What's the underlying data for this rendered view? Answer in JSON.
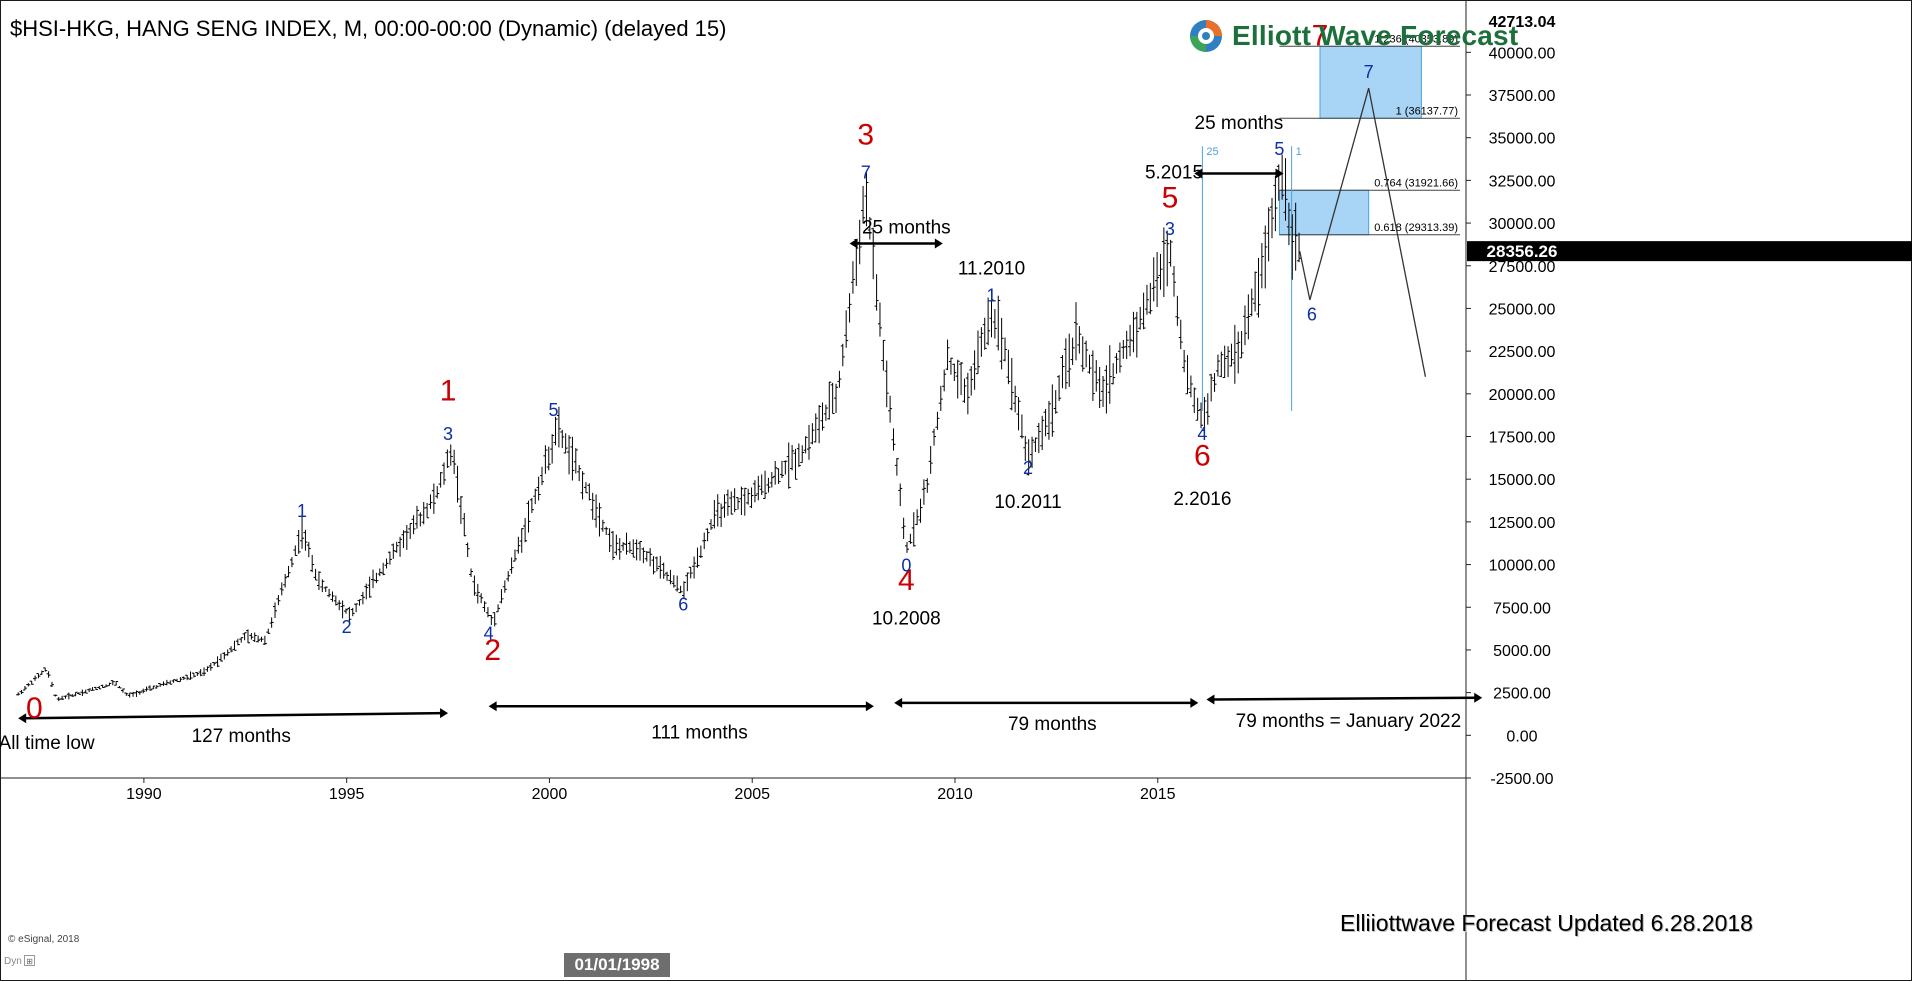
{
  "window": {
    "title": "$HSI-HKG, HANG SENG INDEX, M, 00:00-00:00 (Dynamic) (delayed 15)",
    "brand": "Elliott Wave Forecast",
    "updated": "Elliiottwave Forecast Updated 6.28.2018",
    "copyright": "© eSignal, 2018",
    "dyn_label": "Dyn",
    "cursor_date": "01/01/1998",
    "colors": {
      "wave_major": "#cc0000",
      "wave_minor": "#0b2fa8",
      "target_box": "#a8d4f5",
      "target_border": "#4aa3df",
      "price_tag": "#000000"
    }
  },
  "chart_data": {
    "type": "bar",
    "title": "$HSI-HKG, HANG SENG INDEX, M",
    "xlabel": "",
    "ylabel": "",
    "ylim": [
      -2500,
      42713.04
    ],
    "xlim": [
      1986.6,
      2022.6
    ],
    "x_ticks": [
      1990,
      1995,
      2000,
      2005,
      2010,
      2015
    ],
    "y_ticks": [
      40000,
      37500,
      35000,
      32500,
      30000,
      27500,
      25000,
      22500,
      20000,
      17500,
      15000,
      12500,
      10000,
      7500,
      5000,
      2500,
      0,
      -2500
    ],
    "y_tick_labels": [
      "40000.00",
      "37500.00",
      "35000.00",
      "32500.00",
      "30000.00",
      "27500.00",
      "25000.00",
      "22500.00",
      "20000.00",
      "17500.00",
      "15000.00",
      "12500.00",
      "10000.00",
      "7500.00",
      "5000.00",
      "2500.00",
      "0.00",
      "-2500.00"
    ],
    "top_price_label": "42713.04",
    "last_price_label": "28356.26",
    "last_price": 28356.26,
    "price_path": [
      [
        1986.9,
        2400
      ],
      [
        1987.6,
        3900
      ],
      [
        1987.85,
        2100
      ],
      [
        1988.6,
        2600
      ],
      [
        1989.3,
        3100
      ],
      [
        1989.6,
        2300
      ],
      [
        1990.5,
        3000
      ],
      [
        1991.5,
        3700
      ],
      [
        1992.5,
        5800
      ],
      [
        1993.0,
        5600
      ],
      [
        1993.9,
        12000
      ],
      [
        1994.3,
        9000
      ],
      [
        1995.1,
        7000
      ],
      [
        1996.0,
        10200
      ],
      [
        1997.2,
        14000
      ],
      [
        1997.6,
        16800
      ],
      [
        1998.1,
        9000
      ],
      [
        1998.6,
        6600
      ],
      [
        1999.3,
        11500
      ],
      [
        2000.2,
        18000
      ],
      [
        2000.8,
        15000
      ],
      [
        2001.6,
        11000
      ],
      [
        2002.2,
        11000
      ],
      [
        2003.3,
        8400
      ],
      [
        2004.1,
        13000
      ],
      [
        2005.0,
        14000
      ],
      [
        2006.2,
        16500
      ],
      [
        2007.1,
        20000
      ],
      [
        2007.8,
        31900
      ],
      [
        2008.2,
        23000
      ],
      [
        2008.8,
        10800
      ],
      [
        2009.3,
        14500
      ],
      [
        2009.8,
        22000
      ],
      [
        2010.3,
        20000
      ],
      [
        2010.9,
        24900
      ],
      [
        2011.2,
        23000
      ],
      [
        2011.8,
        16200
      ],
      [
        2012.4,
        19000
      ],
      [
        2013.0,
        23500
      ],
      [
        2013.6,
        20000
      ],
      [
        2014.6,
        24500
      ],
      [
        2015.3,
        28600
      ],
      [
        2015.7,
        21000
      ],
      [
        2016.1,
        18400
      ],
      [
        2016.5,
        21500
      ],
      [
        2017.0,
        22500
      ],
      [
        2017.6,
        27500
      ],
      [
        2018.05,
        33200
      ],
      [
        2018.3,
        29500
      ],
      [
        2018.5,
        28356
      ]
    ],
    "projection": [
      [
        2018.5,
        28356
      ],
      [
        2018.75,
        25500
      ],
      [
        2020.2,
        37900
      ],
      [
        2021.6,
        21000
      ]
    ],
    "target_boxes": [
      {
        "x0": 2018.0,
        "x1": 2020.2,
        "y0": 29313.39,
        "y1": 31921.66
      },
      {
        "x0": 2019.0,
        "x1": 2021.5,
        "y0": 36137.77,
        "y1": 40353.89
      }
    ],
    "fib_levels": [
      {
        "y": 40353.89,
        "label": "1.236 (40353.89)"
      },
      {
        "y": 36137.77,
        "label": "1 (36137.77)"
      },
      {
        "y": 31921.66,
        "label": "0.764 (31921.66)"
      },
      {
        "y": 29313.39,
        "label": "0.618 (29313.39)"
      }
    ],
    "cycle_lines": [
      {
        "x": 2016.1,
        "label": "25"
      },
      {
        "x": 2018.3,
        "label": "1"
      }
    ],
    "wave_labels_major": [
      {
        "text": "0",
        "x": 1987.3,
        "y": 1000
      },
      {
        "text": "1",
        "x": 1997.5,
        "y": 19600
      },
      {
        "text": "2",
        "x": 1998.6,
        "y": 4400
      },
      {
        "text": "3",
        "x": 2007.8,
        "y": 34600
      },
      {
        "text": "4",
        "x": 2008.8,
        "y": 8500
      },
      {
        "text": "5",
        "x": 2015.3,
        "y": 30900
      },
      {
        "text": "6",
        "x": 2016.1,
        "y": 15800
      },
      {
        "text": "7",
        "x": 2019.0,
        "y": 40400
      }
    ],
    "wave_labels_minor": [
      {
        "text": "1",
        "x": 1993.9,
        "y": 12800
      },
      {
        "text": "2",
        "x": 1995.0,
        "y": 6000
      },
      {
        "text": "3",
        "x": 1997.5,
        "y": 17300
      },
      {
        "text": "4",
        "x": 1998.5,
        "y": 5600
      },
      {
        "text": "5",
        "x": 2000.1,
        "y": 18700
      },
      {
        "text": "6",
        "x": 2003.3,
        "y": 7300
      },
      {
        "text": "7",
        "x": 2007.8,
        "y": 32600
      },
      {
        "text": "0",
        "x": 2008.8,
        "y": 9600
      },
      {
        "text": "1",
        "x": 2010.9,
        "y": 25400
      },
      {
        "text": "2",
        "x": 2011.8,
        "y": 15300
      },
      {
        "text": "3",
        "x": 2015.3,
        "y": 29300
      },
      {
        "text": "4",
        "x": 2016.1,
        "y": 17300
      },
      {
        "text": "5",
        "x": 2018.0,
        "y": 34000
      },
      {
        "text": "6",
        "x": 2018.8,
        "y": 24300
      },
      {
        "text": "7",
        "x": 2020.2,
        "y": 38500
      }
    ],
    "annotations": [
      {
        "text": "All time low",
        "x": 1987.6,
        "y": -800
      },
      {
        "text": "127 months",
        "x": 1992.4,
        "y": -400
      },
      {
        "text": "111 months",
        "x": 2003.7,
        "y": -200
      },
      {
        "text": "79 months",
        "x": 2012.4,
        "y": 300
      },
      {
        "text": "79 months = January 2022",
        "x": 2019.7,
        "y": 500
      },
      {
        "text": "10.2008",
        "x": 2008.8,
        "y": 6500
      },
      {
        "text": "11.2010",
        "x": 2010.9,
        "y": 27000
      },
      {
        "text": "10.2011",
        "x": 2011.8,
        "y": 13300
      },
      {
        "text": "2.2016",
        "x": 2016.1,
        "y": 13500
      },
      {
        "text": "5.2015",
        "x": 2015.4,
        "y": 32600
      },
      {
        "text": "25 months",
        "x": 2008.8,
        "y": 29400
      },
      {
        "text": "25 months",
        "x": 2017.0,
        "y": 35500
      }
    ],
    "time_arrows": [
      {
        "x0": 1986.9,
        "y0": 1000,
        "x1": 1997.5,
        "y1": 1300
      },
      {
        "x0": 1998.5,
        "y0": 1700,
        "x1": 2008.0,
        "y1": 1700
      },
      {
        "x0": 2008.5,
        "y0": 1900,
        "x1": 2016.0,
        "y1": 1900
      },
      {
        "x0": 2016.2,
        "y0": 2100,
        "x1": 2023.0,
        "y1": 2200
      },
      {
        "x0": 2007.4,
        "y0": 28800,
        "x1": 2009.7,
        "y1": 28800
      },
      {
        "x0": 2015.9,
        "y0": 32900,
        "x1": 2018.1,
        "y1": 32900
      }
    ]
  }
}
